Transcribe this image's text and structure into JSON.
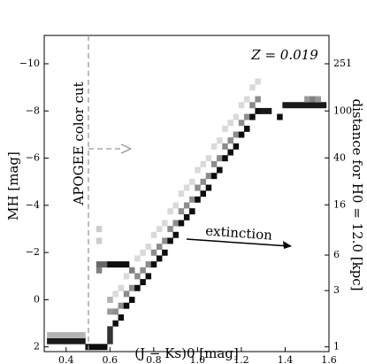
{
  "chart_data": {
    "type": "heatmap",
    "xlabel": "(J − Ks)0 [mag]",
    "ylabel": "MH [mag]",
    "y2label": "distance for H0 = 12.0 [kpc]",
    "annotations": [
      "Z = 0.019",
      "APOGEE color cut",
      "extinction"
    ],
    "xlim": [
      0.3,
      1.6
    ],
    "xticks": [
      0.4,
      0.6,
      0.8,
      {
        "value": 1,
        "label": "1.0"
      },
      1.2,
      1.4,
      1.6
    ],
    "ylim": [
      2.2,
      -11.2
    ],
    "yticks": [
      2,
      0,
      {
        "value": -2,
        "label": "−2"
      },
      {
        "value": -4,
        "label": "−4"
      },
      {
        "value": -6,
        "label": "−6"
      },
      {
        "value": -8,
        "label": "−8"
      },
      {
        "value": -10,
        "label": "−10"
      }
    ],
    "y2log": true,
    "y2lim": [
      0.912,
      436.5
    ],
    "y2ticks": [
      1,
      3,
      6,
      16,
      40,
      100,
      251
    ],
    "cells": [
      [
        0.625,
        1,
        0.95
      ],
      [
        0.625,
        0.5,
        0.45
      ],
      [
        0.625,
        -0.25,
        0.15
      ],
      [
        0.65,
        0.75,
        0.95
      ],
      [
        0.65,
        0.25,
        0.45
      ],
      [
        0.65,
        -0.5,
        0.15
      ],
      [
        0.675,
        0.25,
        0.95
      ],
      [
        0.675,
        -0.25,
        0.45
      ],
      [
        0.675,
        -1,
        0.15
      ],
      [
        0.7,
        0,
        0.95
      ],
      [
        0.7,
        -0.5,
        0.45
      ],
      [
        0.7,
        -1.25,
        0.15
      ],
      [
        0.725,
        -0.5,
        0.95
      ],
      [
        0.725,
        -1,
        0.45
      ],
      [
        0.725,
        -1.75,
        0.15
      ],
      [
        0.75,
        -0.75,
        0.95
      ],
      [
        0.75,
        -1.25,
        0.45
      ],
      [
        0.75,
        -2,
        0.15
      ],
      [
        0.775,
        -1,
        0.95
      ],
      [
        0.775,
        -1.5,
        0.45
      ],
      [
        0.775,
        -2.25,
        0.15
      ],
      [
        0.8,
        -1.5,
        0.95
      ],
      [
        0.8,
        -2,
        0.45
      ],
      [
        0.8,
        -2.75,
        0.15
      ],
      [
        0.825,
        -1.75,
        0.95
      ],
      [
        0.825,
        -2.25,
        0.45
      ],
      [
        0.825,
        -3,
        0.15
      ],
      [
        0.85,
        -2,
        0.95
      ],
      [
        0.85,
        -2.5,
        0.45
      ],
      [
        0.85,
        -3.25,
        0.15
      ],
      [
        0.875,
        -2.5,
        0.95
      ],
      [
        0.875,
        -3,
        0.45
      ],
      [
        0.875,
        -3.75,
        0.15
      ],
      [
        0.9,
        -2.75,
        0.95
      ],
      [
        0.9,
        -3.25,
        0.45
      ],
      [
        0.9,
        -4,
        0.15
      ],
      [
        0.925,
        -3.25,
        0.95
      ],
      [
        0.925,
        -3.75,
        0.45
      ],
      [
        0.925,
        -4.5,
        0.15
      ],
      [
        0.95,
        -3.5,
        0.95
      ],
      [
        0.95,
        -4,
        0.45
      ],
      [
        0.95,
        -4.75,
        0.15
      ],
      [
        0.975,
        -3.75,
        0.95
      ],
      [
        0.975,
        -4.25,
        0.45
      ],
      [
        0.975,
        -5,
        0.15
      ],
      [
        1.0,
        -4.25,
        0.95
      ],
      [
        1.0,
        -4.75,
        0.45
      ],
      [
        1.0,
        -5.5,
        0.15
      ],
      [
        1.025,
        -4.5,
        0.95
      ],
      [
        1.025,
        -5,
        0.45
      ],
      [
        1.025,
        -5.75,
        0.15
      ],
      [
        1.05,
        -4.75,
        0.95
      ],
      [
        1.05,
        -5.25,
        0.45
      ],
      [
        1.05,
        -6,
        0.15
      ],
      [
        1.075,
        -5.25,
        0.95
      ],
      [
        1.075,
        -5.75,
        0.45
      ],
      [
        1.075,
        -6.5,
        0.15
      ],
      [
        1.1,
        -5.5,
        0.95
      ],
      [
        1.1,
        -6,
        0.45
      ],
      [
        1.1,
        -6.75,
        0.15
      ],
      [
        1.125,
        -6,
        0.95
      ],
      [
        1.125,
        -6.5,
        0.45
      ],
      [
        1.125,
        -7.25,
        0.15
      ],
      [
        1.15,
        -6.25,
        0.95
      ],
      [
        1.15,
        -6.75,
        0.45
      ],
      [
        1.15,
        -7.5,
        0.15
      ],
      [
        1.175,
        -6.5,
        0.95
      ],
      [
        1.175,
        -7,
        0.45
      ],
      [
        1.175,
        -7.75,
        0.15
      ],
      [
        1.2,
        -7,
        0.95
      ],
      [
        1.2,
        -7.5,
        0.45
      ],
      [
        1.2,
        -8.25,
        0.15
      ],
      [
        1.225,
        -7.25,
        0.95
      ],
      [
        1.225,
        -7.75,
        0.45
      ],
      [
        1.225,
        -8.5,
        0.15
      ],
      [
        1.25,
        -7.75,
        0.95
      ],
      [
        1.25,
        -8.25,
        0.45
      ],
      [
        1.25,
        -9,
        0.15
      ],
      [
        1.275,
        -8,
        0.95
      ],
      [
        1.275,
        -8.5,
        0.45
      ],
      [
        1.275,
        -9.25,
        0.15
      ],
      [
        0.325,
        1.75,
        0.9
      ],
      [
        0.35,
        1.75,
        0.9
      ],
      [
        0.375,
        1.75,
        0.9
      ],
      [
        0.4,
        1.75,
        0.9
      ],
      [
        0.425,
        1.75,
        0.9
      ],
      [
        0.45,
        1.75,
        0.9
      ],
      [
        0.475,
        1.75,
        0.9
      ],
      [
        0.325,
        1.5,
        0.3
      ],
      [
        0.35,
        1.5,
        0.3
      ],
      [
        0.375,
        1.5,
        0.3
      ],
      [
        0.4,
        1.5,
        0.3
      ],
      [
        0.425,
        1.5,
        0.3
      ],
      [
        0.45,
        1.5,
        0.3
      ],
      [
        0.475,
        1.5,
        0.3
      ],
      [
        0.5,
        2,
        0.95
      ],
      [
        0.525,
        2,
        0.95
      ],
      [
        0.55,
        2,
        0.95
      ],
      [
        0.575,
        2,
        0.95
      ],
      [
        0.6,
        1.75,
        0.8
      ],
      [
        0.6,
        1.5,
        0.8
      ],
      [
        0.6,
        1.25,
        0.8
      ],
      [
        0.6,
        0.5,
        0.4
      ],
      [
        0.6,
        0,
        0.3
      ],
      [
        0.55,
        -1.5,
        0.6
      ],
      [
        0.575,
        -1.5,
        0.6
      ],
      [
        0.6,
        -1.5,
        0.95
      ],
      [
        0.625,
        -1.5,
        0.95
      ],
      [
        0.65,
        -1.5,
        0.95
      ],
      [
        0.675,
        -1.5,
        0.95
      ],
      [
        0.55,
        -1.25,
        0.5
      ],
      [
        0.7,
        -1.25,
        0.5
      ],
      [
        0.55,
        -2.5,
        0.2
      ],
      [
        0.55,
        -3,
        0.2
      ],
      [
        1.3,
        -8,
        0.9
      ],
      [
        1.325,
        -8,
        0.9
      ],
      [
        1.375,
        -7.75,
        0.95
      ],
      [
        1.4,
        -8.25,
        0.9
      ],
      [
        1.425,
        -8.25,
        0.9
      ],
      [
        1.45,
        -8.25,
        0.9
      ],
      [
        1.475,
        -8.25,
        0.9
      ],
      [
        1.5,
        -8.25,
        0.9
      ],
      [
        1.525,
        -8.25,
        0.9
      ],
      [
        1.55,
        -8.25,
        0.9
      ],
      [
        1.575,
        -8.25,
        0.9
      ],
      [
        1.5,
        -8.5,
        0.4
      ],
      [
        1.525,
        -8.5,
        0.5
      ],
      [
        1.55,
        -8.5,
        0.4
      ]
    ]
  }
}
